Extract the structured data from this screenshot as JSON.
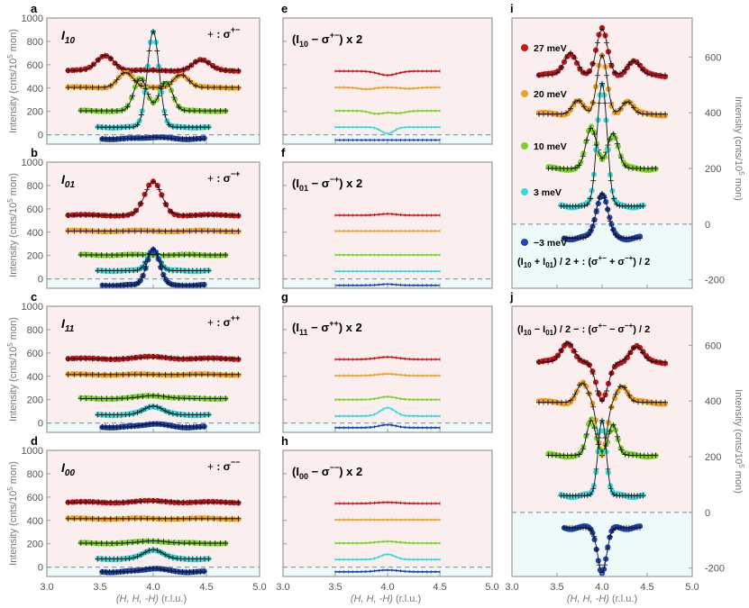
{
  "colors": {
    "c27": "#c8161b",
    "c20": "#f0a020",
    "c10": "#7ad22a",
    "c3": "#35dada",
    "cm3": "#1d46b8",
    "panel_bg": "#fbeeee",
    "neg_bg": "#eefafa"
  },
  "chart_data": [
    {
      "panel": "a",
      "type": "scatter",
      "label": "I10",
      "legend": "+ : σ+−",
      "xlim": [
        3.0,
        5.0
      ],
      "ylim": [
        -80,
        1000
      ],
      "yticks": [
        0,
        200,
        400,
        600,
        800,
        1000
      ],
      "ylabel": "Intensity (cnts/10^5 mon)",
      "series": [
        {
          "name": "27 meV",
          "offset": 550,
          "peaks": [
            [
              3.55,
              130,
              0.08
            ],
            [
              4.45,
              90,
              0.08
            ]
          ]
        },
        {
          "name": "20 meV",
          "offset": 405,
          "peaks": [
            [
              3.74,
              130,
              0.07
            ],
            [
              4.26,
              110,
              0.07
            ]
          ]
        },
        {
          "name": "10 meV",
          "offset": 205,
          "peaks": [
            [
              3.88,
              280,
              0.06
            ],
            [
              4.12,
              250,
              0.06
            ]
          ]
        },
        {
          "name": "3 meV",
          "offset": 65,
          "peaks": [
            [
              4.0,
              820,
              0.055
            ]
          ]
        },
        {
          "name": "-3 meV",
          "offset": -35,
          "peaks": [
            [
              4.0,
              15,
              0.1
            ]
          ]
        }
      ]
    },
    {
      "panel": "b",
      "type": "scatter",
      "label": "I01",
      "legend": "+ : σ−+",
      "xlim": [
        3.0,
        5.0
      ],
      "ylim": [
        -80,
        1000
      ],
      "yticks": [
        0,
        200,
        400,
        600,
        800,
        1000
      ],
      "ylabel": "Intensity (cnts/10^5 mon)",
      "series": [
        {
          "name": "27 meV",
          "offset": 545,
          "peaks": [
            [
              4.0,
              285,
              0.08
            ]
          ]
        },
        {
          "name": "20 meV",
          "offset": 410,
          "peaks": []
        },
        {
          "name": "10 meV",
          "offset": 205,
          "peaks": []
        },
        {
          "name": "3 meV",
          "offset": 70,
          "peaks": [
            [
              4.0,
              185,
              0.055
            ]
          ]
        },
        {
          "name": "-3 meV",
          "offset": -55,
          "peaks": [
            [
              4.0,
              310,
              0.06
            ]
          ]
        }
      ]
    },
    {
      "panel": "c",
      "type": "scatter",
      "label": "I11",
      "legend": "+ : σ++",
      "xlim": [
        3.0,
        5.0
      ],
      "ylim": [
        -80,
        1000
      ],
      "yticks": [
        0,
        200,
        400,
        600,
        800,
        1000
      ],
      "ylabel": "Intensity (cnts/10^5 mon)",
      "series": [
        {
          "name": "27 meV",
          "offset": 550,
          "peaks": [
            [
              4.0,
              15,
              0.15
            ]
          ]
        },
        {
          "name": "20 meV",
          "offset": 415,
          "peaks": []
        },
        {
          "name": "10 meV",
          "offset": 210,
          "peaks": [
            [
              4.0,
              25,
              0.12
            ]
          ]
        },
        {
          "name": "3 meV",
          "offset": 70,
          "peaks": [
            [
              4.0,
              75,
              0.09
            ]
          ]
        },
        {
          "name": "-3 meV",
          "offset": -35,
          "peaks": [
            [
              4.0,
              30,
              0.1
            ]
          ]
        }
      ]
    },
    {
      "panel": "d",
      "type": "scatter",
      "label": "I00",
      "legend": "+ : σ−−",
      "xlim": [
        3.0,
        5.0
      ],
      "ylim": [
        -80,
        1000
      ],
      "yticks": [
        0,
        200,
        400,
        600,
        800,
        1000
      ],
      "ylabel": "Intensity (cnts/10^5 mon)",
      "xlabel": "(H, H, -H) (r.l.u.)",
      "xticks": [
        3.0,
        3.5,
        4.0,
        4.5,
        5.0
      ],
      "series": [
        {
          "name": "27 meV",
          "offset": 555,
          "peaks": [
            [
              4.0,
              10,
              0.15
            ]
          ]
        },
        {
          "name": "20 meV",
          "offset": 415,
          "peaks": []
        },
        {
          "name": "10 meV",
          "offset": 205,
          "peaks": [
            [
              4.0,
              20,
              0.12
            ]
          ]
        },
        {
          "name": "3 meV",
          "offset": 70,
          "peaks": [
            [
              4.0,
              80,
              0.09
            ]
          ]
        },
        {
          "name": "-3 meV",
          "offset": -40,
          "peaks": [
            [
              4.0,
              30,
              0.1
            ]
          ]
        }
      ]
    },
    {
      "panel": "e",
      "type": "line",
      "label": "(I10 − σ+−) x 2",
      "xlim": [
        3.0,
        5.0
      ],
      "ylim": [
        -80,
        1000
      ],
      "series": [
        {
          "name": "27 meV",
          "offset": 545,
          "peaks": [
            [
              4.0,
              -35,
              0.09
            ]
          ]
        },
        {
          "name": "20 meV",
          "offset": 405,
          "peaks": [
            [
              3.8,
              -15,
              0.07
            ],
            [
              4.2,
              -10,
              0.07
            ]
          ]
        },
        {
          "name": "10 meV",
          "offset": 205,
          "peaks": [
            [
              3.9,
              -25,
              0.07
            ],
            [
              4.1,
              -20,
              0.07
            ]
          ]
        },
        {
          "name": "3 meV",
          "offset": 65,
          "peaks": [
            [
              4.0,
              -55,
              0.06
            ]
          ]
        },
        {
          "name": "-3 meV",
          "offset": -45,
          "peaks": []
        }
      ]
    },
    {
      "panel": "f",
      "type": "line",
      "label": "(I01 − σ−+) x 2",
      "xlim": [
        3.0,
        5.0
      ],
      "ylim": [
        -80,
        1000
      ],
      "series": [
        {
          "name": "27 meV",
          "offset": 545,
          "peaks": [
            [
              4.0,
              12,
              0.08
            ]
          ]
        },
        {
          "name": "20 meV",
          "offset": 410,
          "peaks": []
        },
        {
          "name": "10 meV",
          "offset": 205,
          "peaks": []
        },
        {
          "name": "3 meV",
          "offset": 65,
          "peaks": []
        },
        {
          "name": "-3 meV",
          "offset": -55,
          "peaks": [
            [
              4.0,
              10,
              0.07
            ]
          ]
        }
      ]
    },
    {
      "panel": "g",
      "type": "line",
      "label": "(I11 − σ++) x 2",
      "xlim": [
        3.0,
        5.0
      ],
      "ylim": [
        -80,
        1000
      ],
      "series": [
        {
          "name": "27 meV",
          "offset": 545,
          "peaks": [
            [
              4.0,
              20,
              0.1
            ]
          ]
        },
        {
          "name": "20 meV",
          "offset": 405,
          "peaks": [
            [
              4.0,
              15,
              0.1
            ]
          ]
        },
        {
          "name": "10 meV",
          "offset": 200,
          "peaks": [
            [
              4.0,
              25,
              0.08
            ]
          ]
        },
        {
          "name": "3 meV",
          "offset": 60,
          "peaks": [
            [
              4.0,
              70,
              0.07
            ]
          ]
        },
        {
          "name": "-3 meV",
          "offset": -40,
          "peaks": [
            [
              4.0,
              25,
              0.08
            ]
          ]
        }
      ]
    },
    {
      "panel": "h",
      "type": "line",
      "label": "(I00 − σ−−) x 2",
      "xlim": [
        3.0,
        5.0
      ],
      "ylim": [
        -80,
        1000
      ],
      "xlabel": "(H, H, -H) (r.l.u.)",
      "xticks": [
        3.0,
        3.5,
        4.0,
        4.5,
        5.0
      ],
      "series": [
        {
          "name": "27 meV",
          "offset": 545,
          "peaks": [
            [
              4.0,
              10,
              0.1
            ]
          ]
        },
        {
          "name": "20 meV",
          "offset": 405,
          "peaks": []
        },
        {
          "name": "10 meV",
          "offset": 205,
          "peaks": [
            [
              4.0,
              15,
              0.1
            ]
          ]
        },
        {
          "name": "3 meV",
          "offset": 65,
          "peaks": [
            [
              4.0,
              45,
              0.07
            ]
          ]
        },
        {
          "name": "-3 meV",
          "offset": -40,
          "peaks": [
            [
              4.0,
              15,
              0.1
            ]
          ]
        }
      ]
    },
    {
      "panel": "i",
      "type": "scatter",
      "label": "(I10 + I01) / 2   + : (σ+− + σ−+) / 2",
      "xlim": [
        3.0,
        5.0
      ],
      "ylim": [
        -230,
        740
      ],
      "yticks": [
        -200,
        0,
        200,
        400,
        600
      ],
      "ylabel": "Intensity (cnts/10^5 mon)",
      "legend_entries": [
        "27 meV",
        "20 meV",
        "10 meV",
        "3 meV",
        "−3 meV"
      ],
      "series": [
        {
          "name": "27 meV",
          "offset": 535,
          "peaks": [
            [
              3.65,
              80,
              0.07
            ],
            [
              4.0,
              165,
              0.06
            ],
            [
              4.35,
              50,
              0.07
            ]
          ]
        },
        {
          "name": "20 meV",
          "offset": 395,
          "peaks": [
            [
              3.73,
              50,
              0.06
            ],
            [
              4.0,
              210,
              0.055
            ],
            [
              4.28,
              45,
              0.06
            ]
          ]
        },
        {
          "name": "10 meV",
          "offset": 200,
          "peaks": [
            [
              3.88,
              145,
              0.06
            ],
            [
              4.12,
              125,
              0.06
            ]
          ]
        },
        {
          "name": "3 meV",
          "offset": 65,
          "peaks": [
            [
              4.0,
              440,
              0.055
            ]
          ]
        },
        {
          "name": "−3 meV",
          "offset": -50,
          "peaks": [
            [
              4.0,
              160,
              0.065
            ]
          ]
        }
      ]
    },
    {
      "panel": "j",
      "type": "scatter",
      "label": "(I10 − I01) / 2   − : (σ+− − σ−+) / 2",
      "xlim": [
        3.0,
        5.0
      ],
      "ylim": [
        -230,
        740
      ],
      "yticks": [
        -200,
        0,
        200,
        400,
        600
      ],
      "ylabel": "Intensity (cnts/10^5 mon)",
      "xlabel": "(H, H, -H) (r.l.u.)",
      "xticks": [
        3.0,
        3.5,
        4.0,
        4.5,
        5.0
      ],
      "series": [
        {
          "name": "27 meV",
          "offset": 540,
          "peaks": [
            [
              3.62,
              70,
              0.07
            ],
            [
              4.0,
              -140,
              0.065
            ],
            [
              4.38,
              55,
              0.07
            ]
          ]
        },
        {
          "name": "20 meV",
          "offset": 395,
          "peaks": [
            [
              3.78,
              70,
              0.06
            ],
            [
              4.0,
              -190,
              0.05
            ],
            [
              4.22,
              60,
              0.06
            ]
          ]
        },
        {
          "name": "10 meV",
          "offset": 205,
          "peaks": [
            [
              3.88,
              125,
              0.05
            ],
            [
              4.12,
              110,
              0.05
            ]
          ]
        },
        {
          "name": "3 meV",
          "offset": 60,
          "peaks": [
            [
              4.0,
              270,
              0.045
            ]
          ]
        },
        {
          "name": "−3 meV",
          "offset": -55,
          "peaks": [
            [
              4.0,
              -160,
              0.05
            ]
          ]
        }
      ]
    }
  ],
  "text": {
    "panel_a": "a",
    "panel_b": "b",
    "panel_c": "c",
    "panel_d": "d",
    "panel_e": "e",
    "panel_f": "f",
    "panel_g": "g",
    "panel_h": "h",
    "panel_i": "i",
    "panel_j": "j",
    "I_base": "I",
    "sub10": "10",
    "sub01": "01",
    "sub11": "11",
    "sub00": "00",
    "plus_sym": "+",
    "colon_sigma": " : σ",
    "sup_pm": "+−",
    "sup_mp": "−+",
    "sup_pp": "++",
    "sup_mm": "−−",
    "e_open": "(I",
    "e_mid": " − σ",
    "e_close": ") x 2",
    "ylabel_left": "Intensity (cnts/10",
    "ylabel_five": "5",
    "ylabel_mon": " mon)",
    "xlabel_hhh": "(H, H, -H)",
    "xlabel_rlu": " (r.l.u.)",
    "legend_27": "27 meV",
    "legend_20": "20 meV",
    "legend_10": "10 meV",
    "legend_3": "3 meV",
    "legend_m3": "−3 meV",
    "i_formula_a": "(I",
    "i_formula_b": " + I",
    "i_formula_c": ") / 2",
    "i_formula_d": "  +  : (σ",
    "i_formula_e": " + σ",
    "i_formula_f": ") / 2",
    "j_formula_a": "(I",
    "j_formula_b": " − I",
    "j_formula_c": ") / 2",
    "j_formula_d": "  −  : (σ",
    "j_formula_e": " − σ",
    "j_formula_f": ") / 2"
  }
}
